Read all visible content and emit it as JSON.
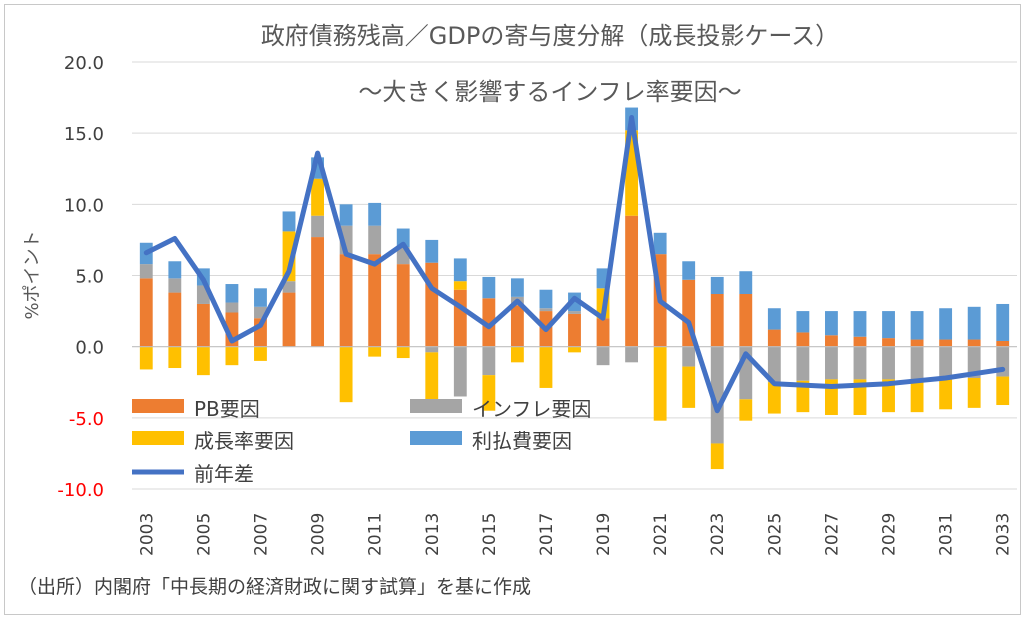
{
  "chart_data": {
    "type": "bar",
    "title": "政府債務残高／GDPの寄与度分解（成長投影ケース）",
    "subtitle": "～大きく影響するインフレ率要因～",
    "ylabel": "%ポイント",
    "ylim": [
      -10,
      20
    ],
    "yticks": [
      20,
      15,
      10,
      5,
      0,
      -5,
      -10
    ],
    "ytick_labels": [
      "20.0",
      "15.0",
      "10.0",
      "5.0",
      "0.0",
      "-5.0",
      "-10.0"
    ],
    "source": "（出所）内閣府「中長期の経済財政に関す試算」を基に作成",
    "years": [
      2003,
      2004,
      2005,
      2006,
      2007,
      2008,
      2009,
      2010,
      2011,
      2012,
      2013,
      2014,
      2015,
      2016,
      2017,
      2018,
      2019,
      2020,
      2021,
      2022,
      2023,
      2024,
      2025,
      2026,
      2027,
      2028,
      2029,
      2030,
      2031,
      2032,
      2033
    ],
    "xtick_labels": [
      "2003",
      "2005",
      "2007",
      "2009",
      "2011",
      "2013",
      "2015",
      "2017",
      "2019",
      "2021",
      "2023",
      "2025",
      "2027",
      "2029",
      "2031",
      "2033"
    ],
    "series": [
      {
        "name": "PB要因",
        "color": "#ED7D31",
        "kind": "bar",
        "values": [
          4.8,
          3.8,
          3.0,
          2.4,
          2.0,
          3.8,
          7.7,
          6.5,
          6.5,
          5.8,
          5.9,
          4.0,
          3.4,
          2.9,
          2.5,
          2.3,
          2.0,
          9.2,
          6.5,
          4.7,
          3.7,
          3.7,
          1.2,
          1.0,
          0.8,
          0.7,
          0.6,
          0.5,
          0.5,
          0.5,
          0.4
        ]
      },
      {
        "name": "インフレ要因",
        "color": "#A5A5A5",
        "kind": "bar",
        "values": [
          1.0,
          1.0,
          1.3,
          0.7,
          0.8,
          0.8,
          1.5,
          2.0,
          2.0,
          1.2,
          -0.4,
          -3.5,
          -2.0,
          0.6,
          0.2,
          0.2,
          -1.3,
          -1.1,
          0.0,
          -1.4,
          -6.8,
          -3.7,
          -2.5,
          -2.4,
          -2.3,
          -2.3,
          -2.3,
          -2.3,
          -2.3,
          -2.2,
          -2.1
        ]
      },
      {
        "name": "成長率要因",
        "color": "#FFC000",
        "kind": "bar",
        "values": [
          -1.6,
          -1.5,
          -2.0,
          -1.3,
          -1.0,
          3.5,
          2.6,
          -3.9,
          -0.7,
          -0.8,
          -3.3,
          0.6,
          -2.5,
          -1.1,
          -2.9,
          -0.4,
          2.1,
          6.0,
          -5.2,
          -2.9,
          -1.8,
          -1.5,
          -2.2,
          -2.2,
          -2.5,
          -2.5,
          -2.3,
          -2.3,
          -2.1,
          -2.1,
          -2.0
        ]
      },
      {
        "name": "利払費要因",
        "color": "#5B9BD5",
        "kind": "bar",
        "values": [
          1.5,
          1.2,
          1.2,
          1.3,
          1.3,
          1.4,
          1.5,
          1.5,
          1.6,
          1.3,
          1.6,
          1.6,
          1.5,
          1.3,
          1.3,
          1.3,
          1.4,
          1.6,
          1.5,
          1.3,
          1.2,
          1.6,
          1.5,
          1.5,
          1.7,
          1.8,
          1.9,
          2.0,
          2.2,
          2.3,
          2.6
        ]
      },
      {
        "name": "前年差",
        "color": "#4472C4",
        "kind": "line",
        "values": [
          6.6,
          7.6,
          4.7,
          0.4,
          1.5,
          5.3,
          13.6,
          6.5,
          5.8,
          7.2,
          4.1,
          2.8,
          1.4,
          3.2,
          1.2,
          3.4,
          2.0,
          16.1,
          3.2,
          1.7,
          -4.5,
          -0.5,
          -2.6,
          -2.7,
          -2.8,
          -2.7,
          -2.6,
          -2.4,
          -2.2,
          -1.9,
          -1.6
        ]
      }
    ],
    "legend": [
      {
        "label": "PB要因",
        "color": "#ED7D31",
        "kind": "bar"
      },
      {
        "label": "インフレ要因",
        "color": "#A5A5A5",
        "kind": "bar"
      },
      {
        "label": "成長率要因",
        "color": "#FFC000",
        "kind": "bar"
      },
      {
        "label": "利払費要因",
        "color": "#5B9BD5",
        "kind": "bar"
      },
      {
        "label": "前年差",
        "color": "#4472C4",
        "kind": "line"
      }
    ]
  }
}
